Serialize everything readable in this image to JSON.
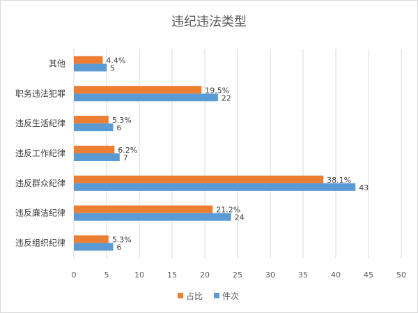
{
  "chart_data": {
    "type": "bar",
    "orientation": "horizontal",
    "title": "违纪违法类型",
    "categories": [
      "其他",
      "职务违法犯罪",
      "违反生活纪律",
      "违反工作纪律",
      "违反群众纪律",
      "违反廉洁纪律",
      "违反组织纪律"
    ],
    "series": [
      {
        "name": "占比",
        "color": "#ED7D31",
        "values": [
          4.4,
          19.5,
          5.3,
          6.2,
          38.1,
          21.2,
          5.3
        ],
        "labels": [
          "4.4%",
          "19.5%",
          "5.3%",
          "6.2%",
          "38.1%",
          "21.2%",
          "5.3%"
        ]
      },
      {
        "name": "件次",
        "color": "#5B9BD5",
        "values": [
          5,
          22,
          6,
          7,
          43,
          24,
          6
        ],
        "labels": [
          "5",
          "22",
          "6",
          "7",
          "43",
          "24",
          "6"
        ]
      }
    ],
    "xlim": [
      0,
      50
    ],
    "xticks": [
      0,
      5,
      10,
      15,
      20,
      25,
      30,
      35,
      40,
      45,
      50
    ],
    "grid": true,
    "legend_position": "bottom"
  }
}
